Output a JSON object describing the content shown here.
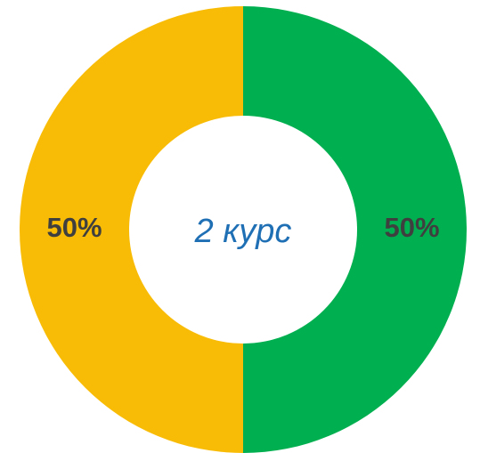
{
  "chart_data": {
    "type": "pie",
    "title": "2 курс",
    "values": [
      50,
      50
    ],
    "value_labels": [
      "50%",
      "50%"
    ],
    "colors": [
      "#00b050",
      "#f9bc06"
    ],
    "donut": true
  }
}
